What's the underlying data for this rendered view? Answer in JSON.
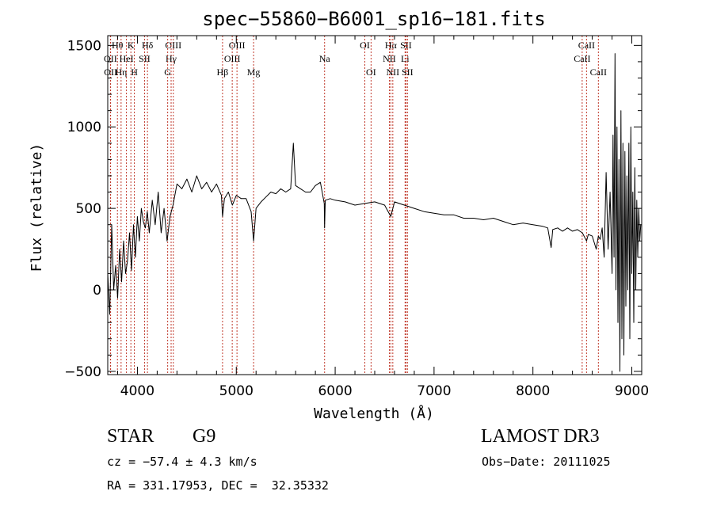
{
  "chart_data": {
    "type": "line",
    "title": "spec−55860−B6001_sp16−181.fits",
    "xlabel": "Wavelength (Å)",
    "ylabel": "Flux (relative)",
    "xlim": [
      3700,
      9100
    ],
    "ylim": [
      -520,
      1560
    ],
    "x_ticks": [
      4000,
      5000,
      6000,
      7000,
      8000,
      9000
    ],
    "y_ticks": [
      -500,
      0,
      500,
      1000,
      1500
    ],
    "x_tick_labels": [
      "4000",
      "5000",
      "6000",
      "7000",
      "8000",
      "9000"
    ],
    "y_tick_labels": [
      "−500",
      "0",
      "500",
      "1000",
      "1500"
    ],
    "series": [
      {
        "name": "flux",
        "x": [
          3700,
          3720,
          3740,
          3760,
          3780,
          3800,
          3820,
          3840,
          3860,
          3880,
          3900,
          3920,
          3940,
          3960,
          3980,
          4000,
          4020,
          4040,
          4060,
          4080,
          4100,
          4120,
          4150,
          4180,
          4210,
          4240,
          4270,
          4300,
          4330,
          4360,
          4400,
          4450,
          4500,
          4550,
          4600,
          4650,
          4700,
          4750,
          4800,
          4850,
          4861,
          4880,
          4920,
          4960,
          5000,
          5050,
          5100,
          5150,
          5175,
          5200,
          5250,
          5300,
          5350,
          5400,
          5450,
          5500,
          5550,
          5577,
          5600,
          5650,
          5700,
          5750,
          5800,
          5850,
          5890,
          5893,
          5900,
          5950,
          6000,
          6100,
          6200,
          6300,
          6400,
          6500,
          6563,
          6600,
          6700,
          6800,
          6900,
          7000,
          7100,
          7200,
          7300,
          7400,
          7500,
          7600,
          7700,
          7800,
          7900,
          8000,
          8100,
          8150,
          8184,
          8200,
          8250,
          8300,
          8350,
          8400,
          8450,
          8500,
          8542,
          8560,
          8600,
          8640,
          8662,
          8680,
          8700,
          8720,
          8740,
          8760,
          8780,
          8800,
          8810,
          8820,
          8830,
          8840,
          8850,
          8860,
          8870,
          8880,
          8890,
          8900,
          8910,
          8920,
          8930,
          8940,
          8950,
          8960,
          8970,
          8980,
          8990,
          9000,
          9010,
          9020,
          9030,
          9040,
          9050,
          9060,
          9070,
          9080,
          9090
        ],
        "y": [
          100,
          -150,
          400,
          0,
          150,
          -50,
          250,
          50,
          300,
          100,
          180,
          350,
          120,
          400,
          200,
          450,
          300,
          500,
          420,
          380,
          480,
          350,
          550,
          400,
          600,
          350,
          500,
          300,
          450,
          520,
          650,
          620,
          680,
          600,
          700,
          620,
          660,
          600,
          650,
          580,
          450,
          560,
          600,
          520,
          580,
          560,
          560,
          480,
          300,
          500,
          540,
          570,
          600,
          590,
          620,
          600,
          620,
          900,
          640,
          620,
          600,
          600,
          640,
          660,
          530,
          380,
          550,
          560,
          550,
          540,
          520,
          530,
          540,
          520,
          450,
          540,
          520,
          500,
          480,
          470,
          460,
          460,
          440,
          440,
          430,
          440,
          420,
          400,
          410,
          400,
          390,
          380,
          260,
          370,
          380,
          360,
          380,
          360,
          370,
          350,
          300,
          340,
          330,
          250,
          330,
          310,
          380,
          200,
          720,
          250,
          600,
          100,
          950,
          200,
          1450,
          0,
          1000,
          -200,
          800,
          -500,
          1100,
          -300,
          900,
          -400,
          850,
          -100,
          700,
          0,
          900,
          -300,
          1000,
          100,
          600,
          -200,
          750,
          0,
          550,
          200,
          500,
          300,
          400
        ]
      }
    ],
    "line_labels": [
      {
        "name": "Hθ",
        "wavelength": 3798,
        "row": 1
      },
      {
        "name": "OII",
        "wavelength": 3727,
        "row": 2
      },
      {
        "name": "OII",
        "wavelength": 3729,
        "row": 3
      },
      {
        "name": "Hη",
        "wavelength": 3835,
        "row": 3
      },
      {
        "name": "HeI",
        "wavelength": 3889,
        "row": 2
      },
      {
        "name": "K",
        "wavelength": 3934,
        "row": 1
      },
      {
        "name": "H",
        "wavelength": 3969,
        "row": 3
      },
      {
        "name": "SII",
        "wavelength": 4072,
        "row": 2
      },
      {
        "name": "Hδ",
        "wavelength": 4102,
        "row": 1
      },
      {
        "name": "OIII",
        "wavelength": 4363,
        "row": 1
      },
      {
        "name": "Hγ",
        "wavelength": 4341,
        "row": 2
      },
      {
        "name": "G",
        "wavelength": 4306,
        "row": 3
      },
      {
        "name": "Hβ",
        "wavelength": 4861,
        "row": 3
      },
      {
        "name": "OIII",
        "wavelength": 4959,
        "row": 2
      },
      {
        "name": "OIII",
        "wavelength": 5007,
        "row": 1
      },
      {
        "name": "Mg",
        "wavelength": 5175,
        "row": 3
      },
      {
        "name": "Na",
        "wavelength": 5893,
        "row": 2
      },
      {
        "name": "OI",
        "wavelength": 6300,
        "row": 1
      },
      {
        "name": "OI",
        "wavelength": 6363,
        "row": 3
      },
      {
        "name": "Hα",
        "wavelength": 6563,
        "row": 1
      },
      {
        "name": "NII",
        "wavelength": 6548,
        "row": 2
      },
      {
        "name": "NII",
        "wavelength": 6583,
        "row": 3
      },
      {
        "name": "Li",
        "wavelength": 6707,
        "row": 2
      },
      {
        "name": "SII",
        "wavelength": 6716,
        "row": 1
      },
      {
        "name": "SII",
        "wavelength": 6731,
        "row": 3
      },
      {
        "name": "CaII",
        "wavelength": 8542,
        "row": 1
      },
      {
        "name": "CaII",
        "wavelength": 8498,
        "row": 2
      },
      {
        "name": "CaII",
        "wavelength": 8662,
        "row": 3
      }
    ]
  },
  "info": {
    "object_class": "STAR",
    "subclass": "G9",
    "survey": "LAMOST DR3",
    "cz": "cz = −57.4 ± 4.3 km/s",
    "obs_date": "Obs−Date: 20111025",
    "coords": "RA = 331.17953, DEC =  32.35332"
  }
}
